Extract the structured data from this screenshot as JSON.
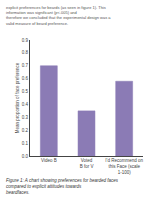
{
  "chart_data": {
    "type": "bar",
    "categories": [
      "Video B",
      "Voted\nB for V",
      "I'd Recommend on\nthis Face (scale\n1-100)"
    ],
    "values": [
      0.7,
      0.35,
      0.58
    ],
    "color": "#8B7BB5",
    "ylabel": "Mean proportion of face preference",
    "ylim": [
      0,
      0.9
    ],
    "yticks": [
      {
        "value": 0,
        "label": "0.0"
      },
      0.1,
      0.2,
      0.3,
      0.4,
      0.5,
      0.6,
      0.7,
      0.8,
      0.9
    ],
    "grid": false,
    "annotations": [
      "explicit preferences for beards (as seen in figure 1). This information was significant (p<.005) and",
      "therefore we concluded that the experimental design was a valid measure of beard preference."
    ],
    "caption": [
      "Figure 1: A chart showing preferences for bearded faces compared to explicit attitudes towards",
      "beardfaces."
    ]
  }
}
